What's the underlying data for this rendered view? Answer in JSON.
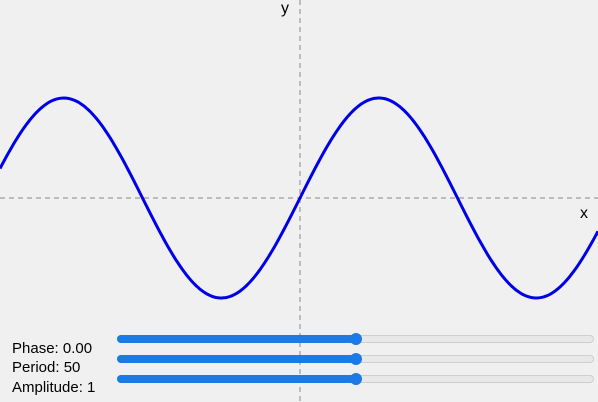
{
  "axes": {
    "x_label": "x",
    "y_label": "y"
  },
  "controls": {
    "phase": {
      "label": "Phase: 0.00",
      "value": 0.0,
      "level": 0.5
    },
    "period": {
      "label": "Period: 50",
      "value": 50,
      "level": 0.5
    },
    "amplitude": {
      "label": "Amplitude: 1",
      "value": 1,
      "level": 0.5
    }
  },
  "chart_data": {
    "type": "line",
    "title": "",
    "xlabel": "x",
    "ylabel": "y",
    "grid": false,
    "series": [
      {
        "function": "sine",
        "phase": 0.0,
        "period": 50,
        "amplitude": 1,
        "color": "#0000e6"
      }
    ]
  },
  "colors": {
    "background": "#f0f0f0",
    "curve": "#0000e6",
    "axis": "#aaaaaa",
    "slider_accent": "#1a7ae8",
    "slider_track": "#e8e8e8"
  }
}
